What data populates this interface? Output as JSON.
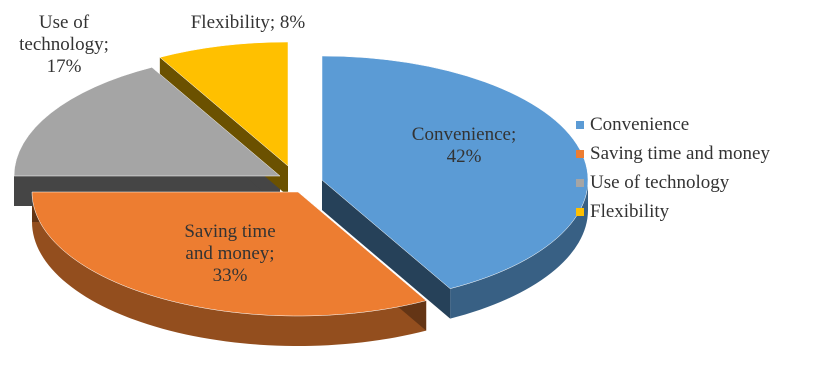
{
  "chart_data": {
    "type": "pie",
    "variant": "exploded-3d",
    "categories": [
      "Convenience",
      "Saving time and money",
      "Use of technology",
      "Flexibility"
    ],
    "values": [
      42,
      33,
      17,
      8
    ],
    "unit": "%",
    "colors": [
      "#5B9BD5",
      "#ED7D31",
      "#A5A5A5",
      "#FFC000"
    ],
    "data_labels": [
      [
        "Convenience;",
        "42%"
      ],
      [
        "Saving time",
        "and money;",
        "33%"
      ],
      [
        "Use of",
        "technology;",
        "17%"
      ],
      [
        "Flexibility; 8%"
      ]
    ],
    "legend_position": "right",
    "title": ""
  },
  "legend": [
    {
      "label": "Convenience",
      "color": "#5B9BD5"
    },
    {
      "label": "Saving time and money",
      "color": "#ED7D31"
    },
    {
      "label": "Use of technology",
      "color": "#A5A5A5"
    },
    {
      "label": "Flexibility",
      "color": "#FFC000"
    }
  ]
}
